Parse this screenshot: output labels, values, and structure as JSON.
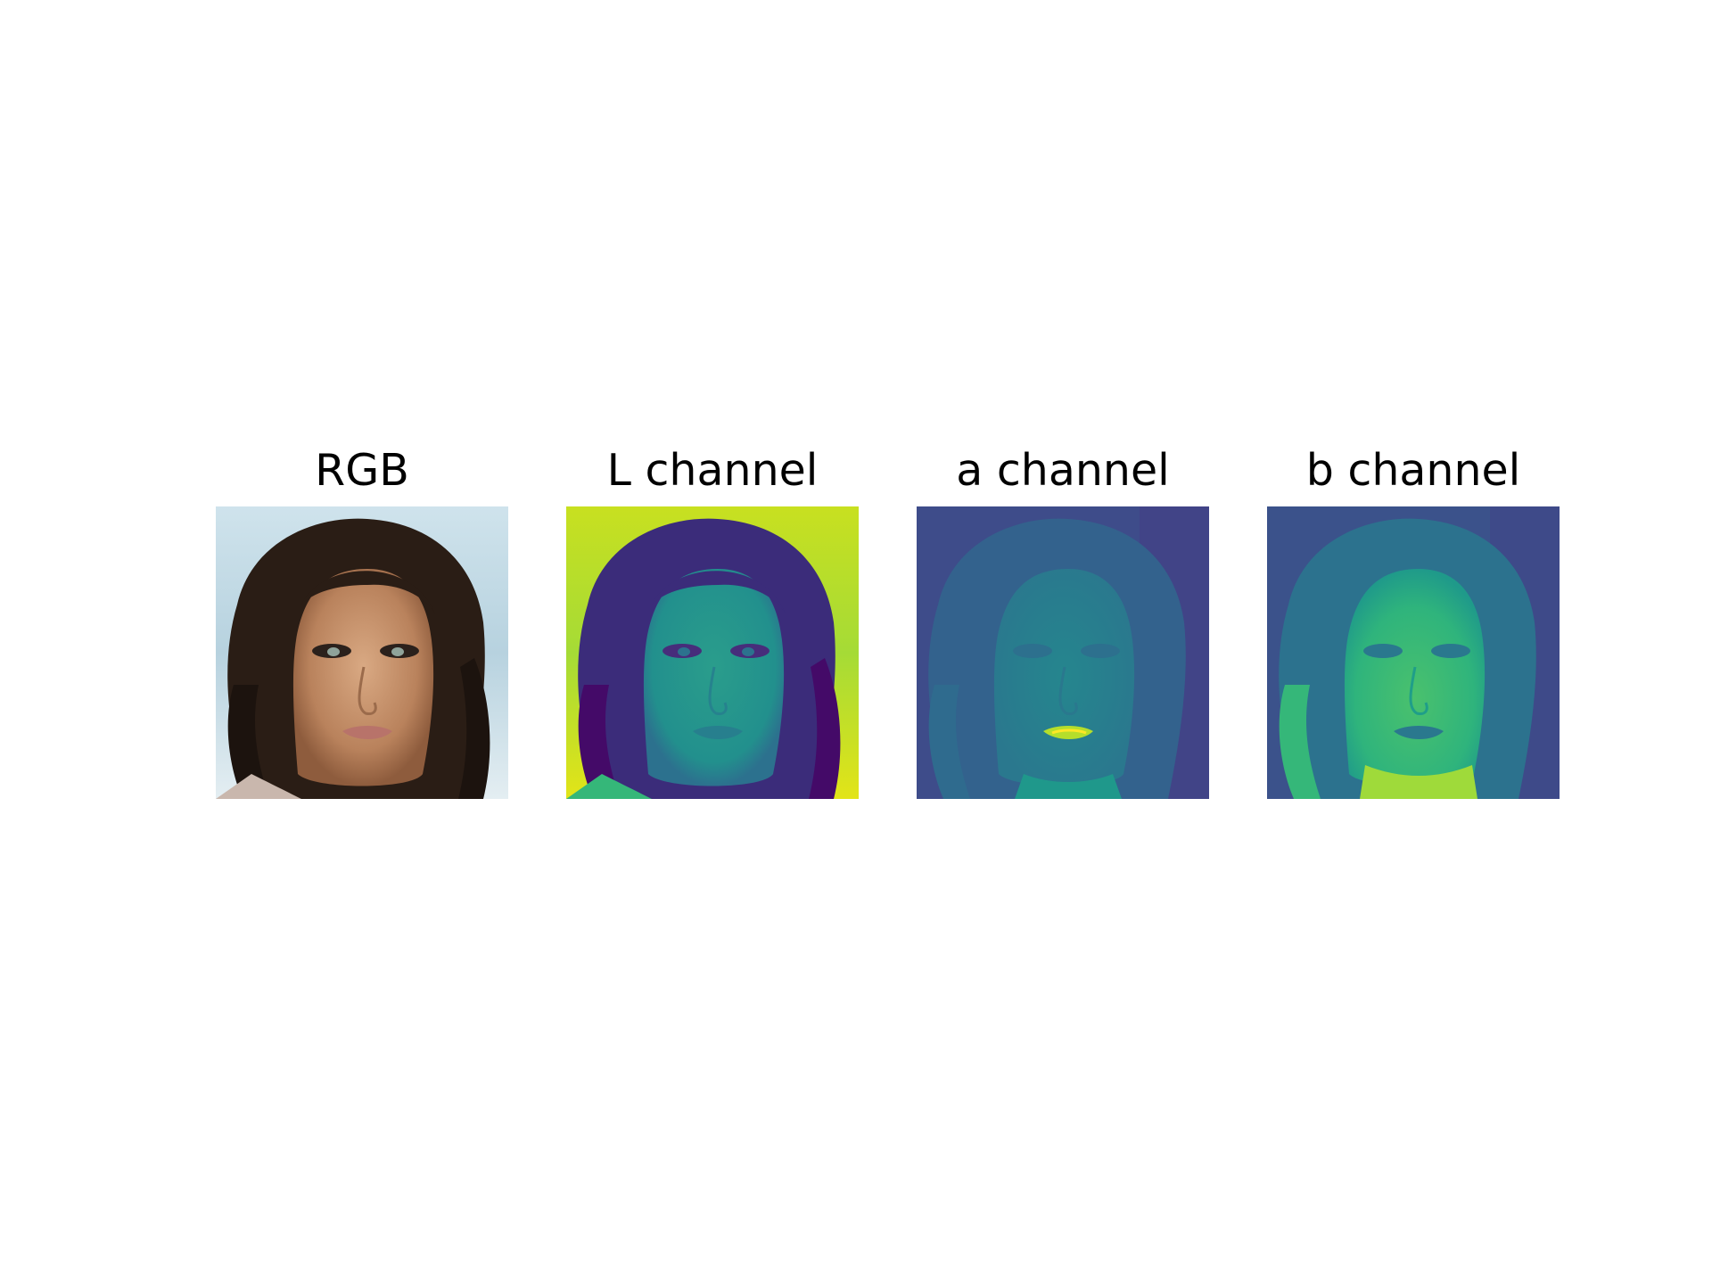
{
  "figure": {
    "panels": [
      {
        "title": "RGB",
        "kind": "rgb"
      },
      {
        "title": "L channel",
        "kind": "L"
      },
      {
        "title": "a channel",
        "kind": "a"
      },
      {
        "title": "b channel",
        "kind": "b"
      }
    ],
    "colors": {
      "background": "#ffffff",
      "title_text": "#000000",
      "viridis_dark": "#440154",
      "viridis_mid": "#21918c",
      "viridis_light": "#fde725"
    }
  }
}
